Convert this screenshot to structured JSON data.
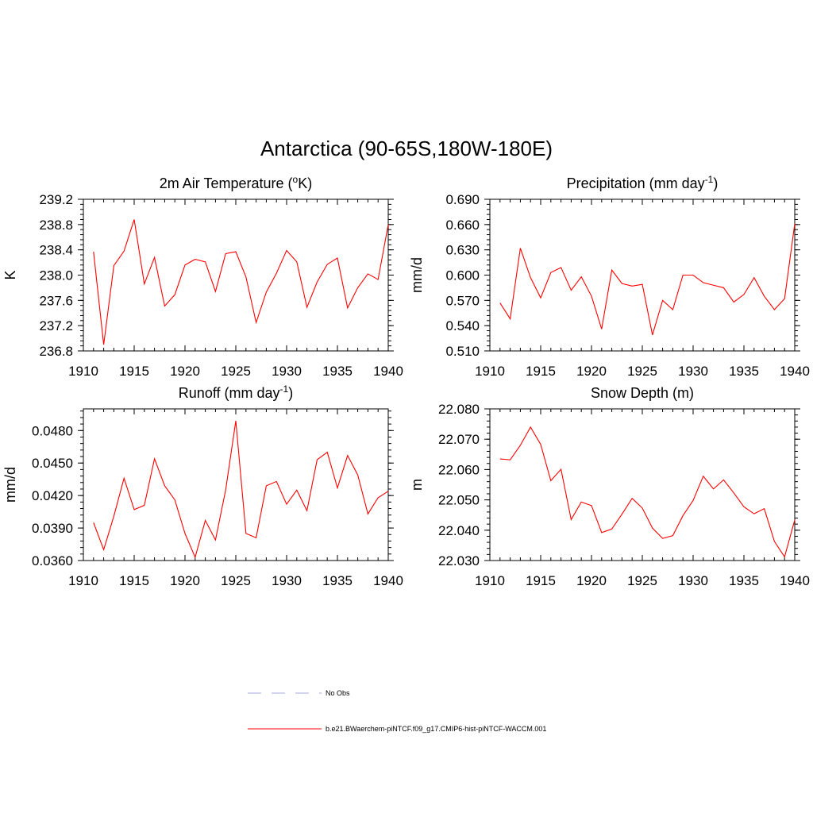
{
  "figure": {
    "title": "Antarctica (90-65S,180W-180E)"
  },
  "legend": {
    "placement": "bottom-center",
    "entries": [
      {
        "label": "No Obs",
        "color": "#aaaadd",
        "dash": "dashed"
      },
      {
        "label": "b.e21.BWaerchem-piNTCF.f09_g17.CMIP6-hist-piNTCF-WACCM.001",
        "color": "#ff0000",
        "dash": "solid"
      }
    ]
  },
  "chart_data": [
    {
      "type": "line",
      "title_main": "2m Air Temperature (",
      "title_sup_prefix": "o",
      "title_after": "K)",
      "title_sup_suffix": "",
      "title_tail": "",
      "ylabel": "K",
      "xlabel": "",
      "xlim": [
        1910,
        1940
      ],
      "ylim": [
        236.8,
        239.2
      ],
      "xticks": [
        "1910",
        "1915",
        "1920",
        "1925",
        "1930",
        "1935",
        "1940"
      ],
      "yticks": [
        "236.8",
        "237.2",
        "237.6",
        "238.0",
        "238.4",
        "238.8",
        "239.2"
      ],
      "grid": false,
      "series": [
        {
          "color": "#ff0000",
          "x": [
            1911,
            1912,
            1913,
            1914,
            1915,
            1916,
            1917,
            1918,
            1919,
            1920,
            1921,
            1922,
            1923,
            1924,
            1925,
            1926,
            1927,
            1928,
            1929,
            1930,
            1931,
            1932,
            1933,
            1934,
            1935,
            1936,
            1937,
            1938,
            1939,
            1940
          ],
          "values": [
            238.37,
            236.9,
            238.15,
            238.38,
            238.88,
            237.86,
            238.28,
            237.51,
            237.69,
            238.16,
            238.25,
            238.21,
            237.74,
            238.34,
            238.37,
            237.97,
            237.25,
            237.73,
            238.03,
            238.39,
            238.21,
            237.49,
            237.89,
            238.17,
            238.27,
            237.48,
            237.8,
            238.02,
            237.93,
            238.8
          ]
        }
      ]
    },
    {
      "type": "line",
      "title_main": "Precipitation (mm day",
      "title_sup_prefix": "",
      "title_after": "",
      "title_sup_suffix": "-1",
      "title_tail": ")",
      "ylabel": "mm/d",
      "xlabel": "",
      "xlim": [
        1910,
        1940
      ],
      "ylim": [
        0.51,
        0.69
      ],
      "xticks": [
        "1910",
        "1915",
        "1920",
        "1925",
        "1930",
        "1935",
        "1940"
      ],
      "yticks": [
        "0.510",
        "0.540",
        "0.570",
        "0.600",
        "0.630",
        "0.660",
        "0.690"
      ],
      "grid": false,
      "series": [
        {
          "color": "#ff0000",
          "x": [
            1911,
            1912,
            1913,
            1914,
            1915,
            1916,
            1917,
            1918,
            1919,
            1920,
            1921,
            1922,
            1923,
            1924,
            1925,
            1926,
            1927,
            1928,
            1929,
            1930,
            1931,
            1932,
            1933,
            1934,
            1935,
            1936,
            1937,
            1938,
            1939,
            1940
          ],
          "values": [
            0.567,
            0.548,
            0.632,
            0.597,
            0.573,
            0.603,
            0.609,
            0.582,
            0.598,
            0.575,
            0.536,
            0.606,
            0.59,
            0.587,
            0.589,
            0.529,
            0.57,
            0.559,
            0.6,
            0.6,
            0.591,
            0.588,
            0.585,
            0.568,
            0.577,
            0.597,
            0.575,
            0.559,
            0.572,
            0.661
          ]
        }
      ]
    },
    {
      "type": "line",
      "title_main": "Runoff (mm day",
      "title_sup_prefix": "",
      "title_after": "",
      "title_sup_suffix": "-1",
      "title_tail": ")",
      "ylabel": "mm/d",
      "xlabel": "",
      "xlim": [
        1910,
        1940
      ],
      "ylim": [
        0.036,
        0.05
      ],
      "xticks": [
        "1910",
        "1915",
        "1920",
        "1925",
        "1930",
        "1935",
        "1940"
      ],
      "yticks": [
        "0.0360",
        "0.0390",
        "0.0420",
        "0.0450",
        "0.0480"
      ],
      "grid": false,
      "series": [
        {
          "color": "#ff0000",
          "x": [
            1911,
            1912,
            1913,
            1914,
            1915,
            1916,
            1917,
            1918,
            1919,
            1920,
            1921,
            1922,
            1923,
            1924,
            1925,
            1926,
            1927,
            1928,
            1929,
            1930,
            1931,
            1932,
            1933,
            1934,
            1935,
            1936,
            1937,
            1938,
            1939,
            1940
          ],
          "values": [
            0.0395,
            0.037,
            0.0401,
            0.0436,
            0.0407,
            0.0411,
            0.0454,
            0.0429,
            0.0416,
            0.0385,
            0.0363,
            0.0397,
            0.0379,
            0.0425,
            0.0489,
            0.0385,
            0.0381,
            0.0429,
            0.0433,
            0.0412,
            0.0425,
            0.0406,
            0.0453,
            0.046,
            0.0427,
            0.0457,
            0.0439,
            0.0403,
            0.0418,
            0.0424
          ]
        }
      ]
    },
    {
      "type": "line",
      "title_main": "Snow Depth (m)",
      "title_sup_prefix": "",
      "title_after": "",
      "title_sup_suffix": "",
      "title_tail": "",
      "ylabel": "m",
      "xlabel": "",
      "xlim": [
        1910,
        1940
      ],
      "ylim": [
        22.03,
        22.08
      ],
      "xticks": [
        "1910",
        "1915",
        "1920",
        "1925",
        "1930",
        "1935",
        "1940"
      ],
      "yticks": [
        "22.030",
        "22.040",
        "22.050",
        "22.060",
        "22.070",
        "22.080"
      ],
      "grid": false,
      "series": [
        {
          "color": "#ff0000",
          "x": [
            1911,
            1912,
            1913,
            1914,
            1915,
            1916,
            1917,
            1918,
            1919,
            1920,
            1921,
            1922,
            1923,
            1924,
            1925,
            1926,
            1927,
            1928,
            1929,
            1930,
            1931,
            1932,
            1933,
            1934,
            1935,
            1936,
            1937,
            1938,
            1939,
            1940
          ],
          "values": [
            22.0635,
            22.0632,
            22.068,
            22.074,
            22.0683,
            22.0563,
            22.0601,
            22.0435,
            22.0493,
            22.0481,
            22.0392,
            22.0404,
            22.0453,
            22.0505,
            22.0473,
            22.0407,
            22.0373,
            22.0382,
            22.0448,
            22.0498,
            22.0578,
            22.0536,
            22.0566,
            22.0523,
            22.0477,
            22.0454,
            22.0471,
            22.0363,
            22.0312,
            22.0434
          ]
        }
      ]
    }
  ]
}
